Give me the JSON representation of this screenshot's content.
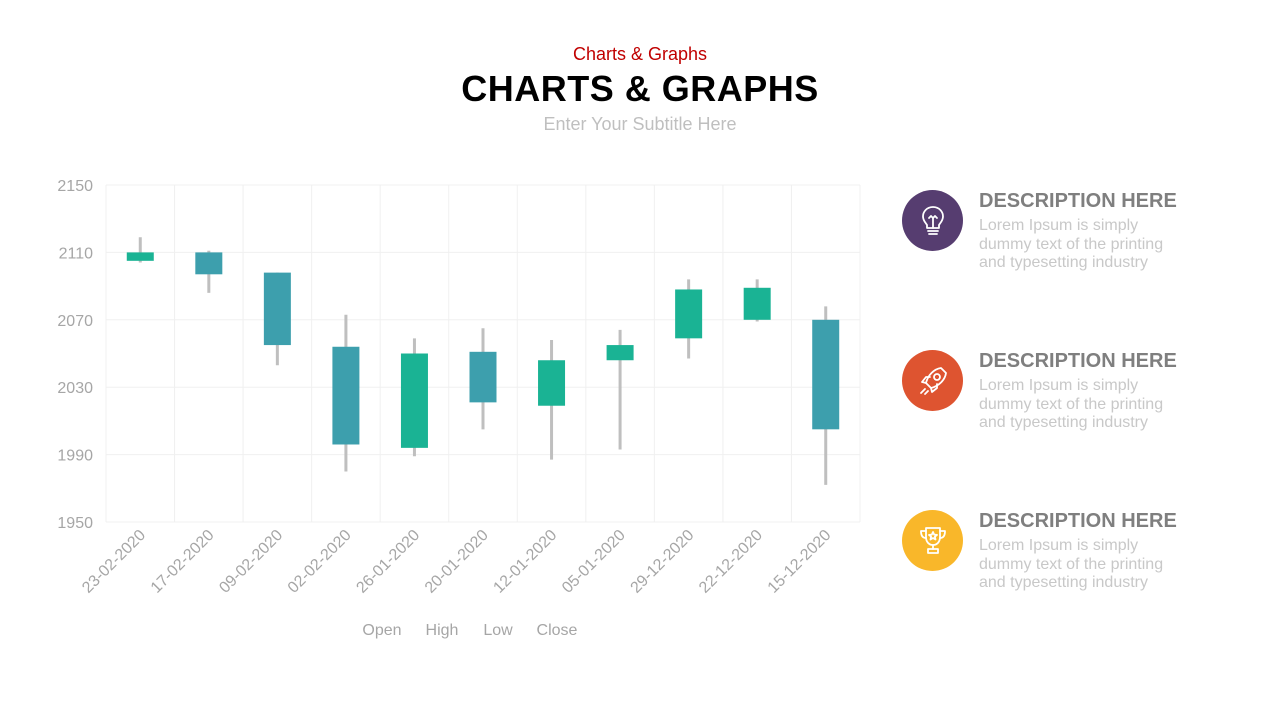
{
  "header": {
    "eyebrow": "Charts & Graphs",
    "title": "CHARTS & GRAPHS",
    "subtitle": "Enter Your Subtitle Here"
  },
  "colors": {
    "eyebrow": "#c00000",
    "bullish": "#1ab394",
    "bearish": "#3d9fad",
    "wick": "#bfbfbf",
    "grid": "#f0f0f0",
    "axis_text": "#a6a6a6"
  },
  "chart_data": {
    "type": "candlestick",
    "title": "",
    "xlabel": "",
    "ylabel": "",
    "ylim": [
      1950,
      2150
    ],
    "yticks": [
      1950,
      1990,
      2030,
      2070,
      2110,
      2150
    ],
    "categories": [
      "23-02-2020",
      "17-02-2020",
      "09-02-2020",
      "02-02-2020",
      "26-01-2020",
      "20-01-2020",
      "12-01-2020",
      "05-01-2020",
      "29-12-2020",
      "22-12-2020",
      "15-12-2020"
    ],
    "series": [
      {
        "name": "Open",
        "values": [
          2105,
          2110,
          2098,
          2054,
          1994,
          2051,
          2019,
          2046,
          2059,
          2070,
          2070
        ]
      },
      {
        "name": "High",
        "values": [
          2119,
          2111,
          2098,
          2073,
          2059,
          2065,
          2058,
          2064,
          2094,
          2094,
          2078
        ]
      },
      {
        "name": "Low",
        "values": [
          2104,
          2086,
          2043,
          1980,
          1989,
          2005,
          1987,
          1993,
          2047,
          2069,
          1972
        ]
      },
      {
        "name": "Close",
        "values": [
          2110,
          2097,
          2055,
          1996,
          2050,
          2021,
          2046,
          2055,
          2088,
          2089,
          2005
        ]
      }
    ],
    "legend": [
      "Open",
      "High",
      "Low",
      "Close"
    ],
    "legend_position": "bottom-center"
  },
  "descriptions": [
    {
      "heading": "DESCRIPTION HERE",
      "body": "Lorem Ipsum is simply dummy text of the printing and typesetting industry",
      "icon": "lightbulb-icon",
      "color": "#563d70"
    },
    {
      "heading": "DESCRIPTION HERE",
      "body": "Lorem Ipsum is simply dummy text of the printing and typesetting industry",
      "icon": "rocket-icon",
      "color": "#de5430"
    },
    {
      "heading": "DESCRIPTION HERE",
      "body": "Lorem Ipsum is simply dummy text of the printing and typesetting industry",
      "icon": "trophy-icon",
      "color": "#f9b72a"
    }
  ]
}
